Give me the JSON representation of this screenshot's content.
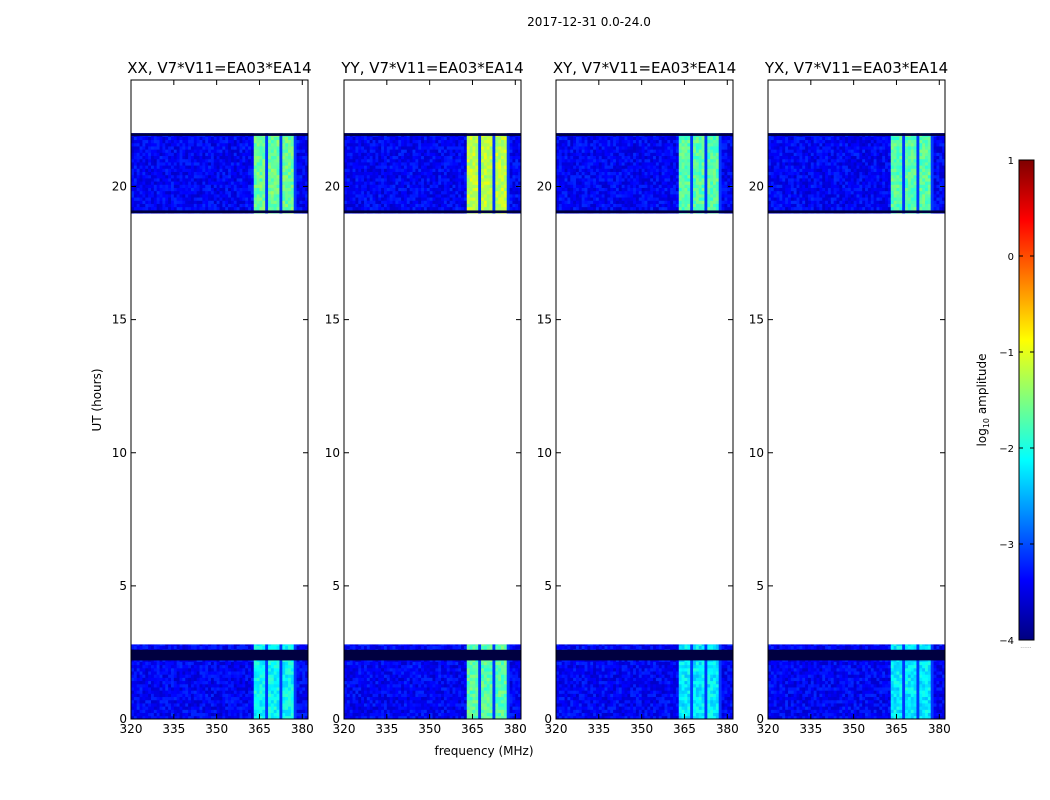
{
  "figure": {
    "suptitle": "2017-12-31 0.0-24.0",
    "xlabel": "frequency (MHz)",
    "ylabel": "UT (hours)"
  },
  "colorbar": {
    "label_main": "log",
    "label_sub": "10",
    "label_tail": " amplitude",
    "ticks": [
      1,
      0,
      -1,
      -2,
      -3,
      -4
    ],
    "tick_labels": [
      "1",
      "0",
      "−1",
      "−2",
      "−3",
      "−4"
    ],
    "range": [
      -4,
      1
    ],
    "footnote": "......",
    "colors": [
      "#00007f",
      "#0000ff",
      "#007fff",
      "#00ffff",
      "#7fff7f",
      "#ffff00",
      "#ff7f00",
      "#ff0000",
      "#7f0000"
    ]
  },
  "chart_data": [
    {
      "type": "heatmap",
      "title": "XX, V7*V11=EA03*EA14",
      "polarization": "XX",
      "xlim": [
        320,
        382
      ],
      "ylim": [
        0,
        24
      ],
      "xticks": [
        320,
        335,
        350,
        365,
        380
      ],
      "yticks": [
        0,
        5,
        10,
        15,
        20
      ],
      "data_blocks_ut": [
        [
          0.0,
          2.8
        ],
        [
          19.0,
          22.0
        ]
      ],
      "flagged_ut": [
        [
          2.2,
          2.6
        ],
        [
          19.0,
          19.1
        ],
        [
          21.9,
          22.0
        ]
      ],
      "bright_band_mhz": [
        363,
        378
      ],
      "bright_level": -1.6,
      "background_level": -3.4
    },
    {
      "type": "heatmap",
      "title": "YY, V7*V11=EA03*EA14",
      "polarization": "YY",
      "xlim": [
        320,
        382
      ],
      "ylim": [
        0,
        24
      ],
      "xticks": [
        320,
        335,
        350,
        365,
        380
      ],
      "yticks": [
        0,
        5,
        10,
        15,
        20
      ],
      "data_blocks_ut": [
        [
          0.0,
          2.8
        ],
        [
          19.0,
          22.0
        ]
      ],
      "flagged_ut": [
        [
          2.2,
          2.6
        ],
        [
          19.0,
          19.1
        ],
        [
          21.9,
          22.0
        ]
      ],
      "bright_band_mhz": [
        363,
        378
      ],
      "bright_level": -1.2,
      "background_level": -3.4
    },
    {
      "type": "heatmap",
      "title": "XY, V7*V11=EA03*EA14",
      "polarization": "XY",
      "xlim": [
        320,
        382
      ],
      "ylim": [
        0,
        24
      ],
      "xticks": [
        320,
        335,
        350,
        365,
        380
      ],
      "yticks": [
        0,
        5,
        10,
        15,
        20
      ],
      "data_blocks_ut": [
        [
          0.0,
          2.8
        ],
        [
          19.0,
          22.0
        ]
      ],
      "flagged_ut": [
        [
          2.2,
          2.6
        ],
        [
          19.0,
          19.1
        ],
        [
          21.9,
          22.0
        ]
      ],
      "bright_band_mhz": [
        363,
        378
      ],
      "bright_level": -1.7,
      "background_level": -3.4
    },
    {
      "type": "heatmap",
      "title": "YX, V7*V11=EA03*EA14",
      "polarization": "YX",
      "xlim": [
        320,
        382
      ],
      "ylim": [
        0,
        24
      ],
      "xticks": [
        320,
        335,
        350,
        365,
        380
      ],
      "yticks": [
        0,
        5,
        10,
        15,
        20
      ],
      "data_blocks_ut": [
        [
          0.0,
          2.8
        ],
        [
          19.0,
          22.0
        ]
      ],
      "flagged_ut": [
        [
          2.2,
          2.6
        ],
        [
          19.0,
          19.1
        ],
        [
          21.9,
          22.0
        ]
      ],
      "bright_band_mhz": [
        363,
        378
      ],
      "bright_level": -1.7,
      "background_level": -3.4
    }
  ]
}
